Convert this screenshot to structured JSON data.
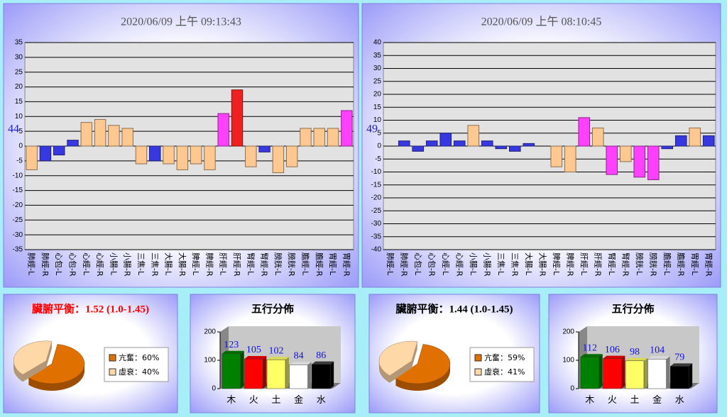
{
  "chart_data": [
    {
      "type": "bar",
      "title": "2020/06/09 上午 09:13:43",
      "annotation": "44",
      "categories": [
        "肺經-L",
        "肺經-R",
        "心包-L",
        "心包-R",
        "心經-L",
        "心經-R",
        "小腸-L",
        "小腸-R",
        "三焦-L",
        "三焦-R",
        "大腸-L",
        "大腸-R",
        "脾經-L",
        "脾經-R",
        "肝經-L",
        "肝經-R",
        "腎經-L",
        "腎經-R",
        "膀胱-L",
        "膀胱-R",
        "膽經-L",
        "膽經-R",
        "胃經-L",
        "胃經-R"
      ],
      "values": [
        -8,
        -5,
        -3,
        2,
        8,
        9,
        7,
        6,
        -6,
        -5,
        -6,
        -8,
        -6,
        -8,
        11,
        19,
        -7,
        -2,
        -9,
        -7,
        6,
        6,
        6,
        12
      ],
      "colors": [
        "#ffc890",
        "#3838e0",
        "#3838e0",
        "#3838e0",
        "#ffc890",
        "#ffc890",
        "#ffc890",
        "#ffc890",
        "#ffc890",
        "#3838e0",
        "#ffc890",
        "#ffc890",
        "#ffc890",
        "#ffc890",
        "#ff40ff",
        "#ee2020",
        "#ffc890",
        "#3838e0",
        "#ffc890",
        "#ffc890",
        "#ffc890",
        "#ffc890",
        "#ffc890",
        "#ff40ff"
      ],
      "ylim": [
        -35,
        35
      ],
      "yticks": [
        -35,
        -30,
        -25,
        -20,
        -15,
        -10,
        -5,
        0,
        5,
        10,
        15,
        20,
        25,
        30,
        35
      ],
      "grid": true
    },
    {
      "type": "bar",
      "title": "2020/06/09 上午 08:10:45",
      "annotation": "49",
      "categories": [
        "肺經-L",
        "肺經-R",
        "心包-L",
        "心包-R",
        "心經-L",
        "心經-R",
        "小腸-L",
        "小腸-R",
        "三焦-L",
        "三焦-R",
        "大腸-L",
        "大腸-R",
        "脾經-L",
        "脾經-R",
        "肝經-L",
        "肝經-R",
        "腎經-L",
        "腎經-R",
        "膀胱-L",
        "膀胱-R",
        "膽經-L",
        "膽經-R",
        "胃經-L",
        "胃經-R"
      ],
      "values": [
        0,
        2,
        -2,
        2,
        5,
        2,
        8,
        2,
        -1,
        -2,
        1,
        0,
        -8,
        -10,
        11,
        7,
        -11,
        -6,
        -12,
        -13,
        -1,
        4,
        7,
        4
      ],
      "colors": [
        "#3838e0",
        "#3838e0",
        "#3838e0",
        "#3838e0",
        "#3838e0",
        "#3838e0",
        "#ffc890",
        "#3838e0",
        "#3838e0",
        "#3838e0",
        "#3838e0",
        "#3838e0",
        "#ffc890",
        "#ffc890",
        "#ff40ff",
        "#ffc890",
        "#ff40ff",
        "#ffc890",
        "#ff40ff",
        "#ff40ff",
        "#3838e0",
        "#3838e0",
        "#ffc890",
        "#3838e0"
      ],
      "ylim": [
        -40,
        40
      ],
      "yticks": [
        -40,
        -35,
        -30,
        -25,
        -20,
        -15,
        -10,
        -5,
        0,
        5,
        10,
        15,
        20,
        25,
        30,
        35,
        40
      ],
      "grid": true
    },
    {
      "type": "pie",
      "title": "臟腑平衡：1.52 (1.0-1.45)",
      "title_color": "#ff0000",
      "categories": [
        "亢奮：60%",
        "虛衰：40%"
      ],
      "values": [
        60,
        40
      ],
      "colors": [
        "#e07000",
        "#ffd8a8"
      ]
    },
    {
      "type": "bar3d",
      "title": "五行分佈",
      "categories": [
        "木",
        "火",
        "土",
        "金",
        "水"
      ],
      "values": [
        123,
        105,
        102,
        84,
        86
      ],
      "colors": [
        "#008000",
        "#ff0000",
        "#ffff66",
        "#ffffff",
        "#000000"
      ],
      "ylim": [
        0,
        200
      ],
      "yticks": [
        0,
        100,
        200
      ]
    },
    {
      "type": "pie",
      "title": "臟腑平衡：1.44 (1.0-1.45)",
      "title_color": "#000000",
      "categories": [
        "亢奮：59%",
        "虛衰：41%"
      ],
      "values": [
        59,
        41
      ],
      "colors": [
        "#e07000",
        "#ffd8a8"
      ]
    },
    {
      "type": "bar3d",
      "title": "五行分佈",
      "categories": [
        "木",
        "火",
        "土",
        "金",
        "水"
      ],
      "values": [
        112,
        106,
        98,
        104,
        79
      ],
      "colors": [
        "#008000",
        "#ff0000",
        "#ffff66",
        "#ffffff",
        "#000000"
      ],
      "ylim": [
        0,
        200
      ],
      "yticks": [
        0,
        100,
        200
      ]
    }
  ]
}
